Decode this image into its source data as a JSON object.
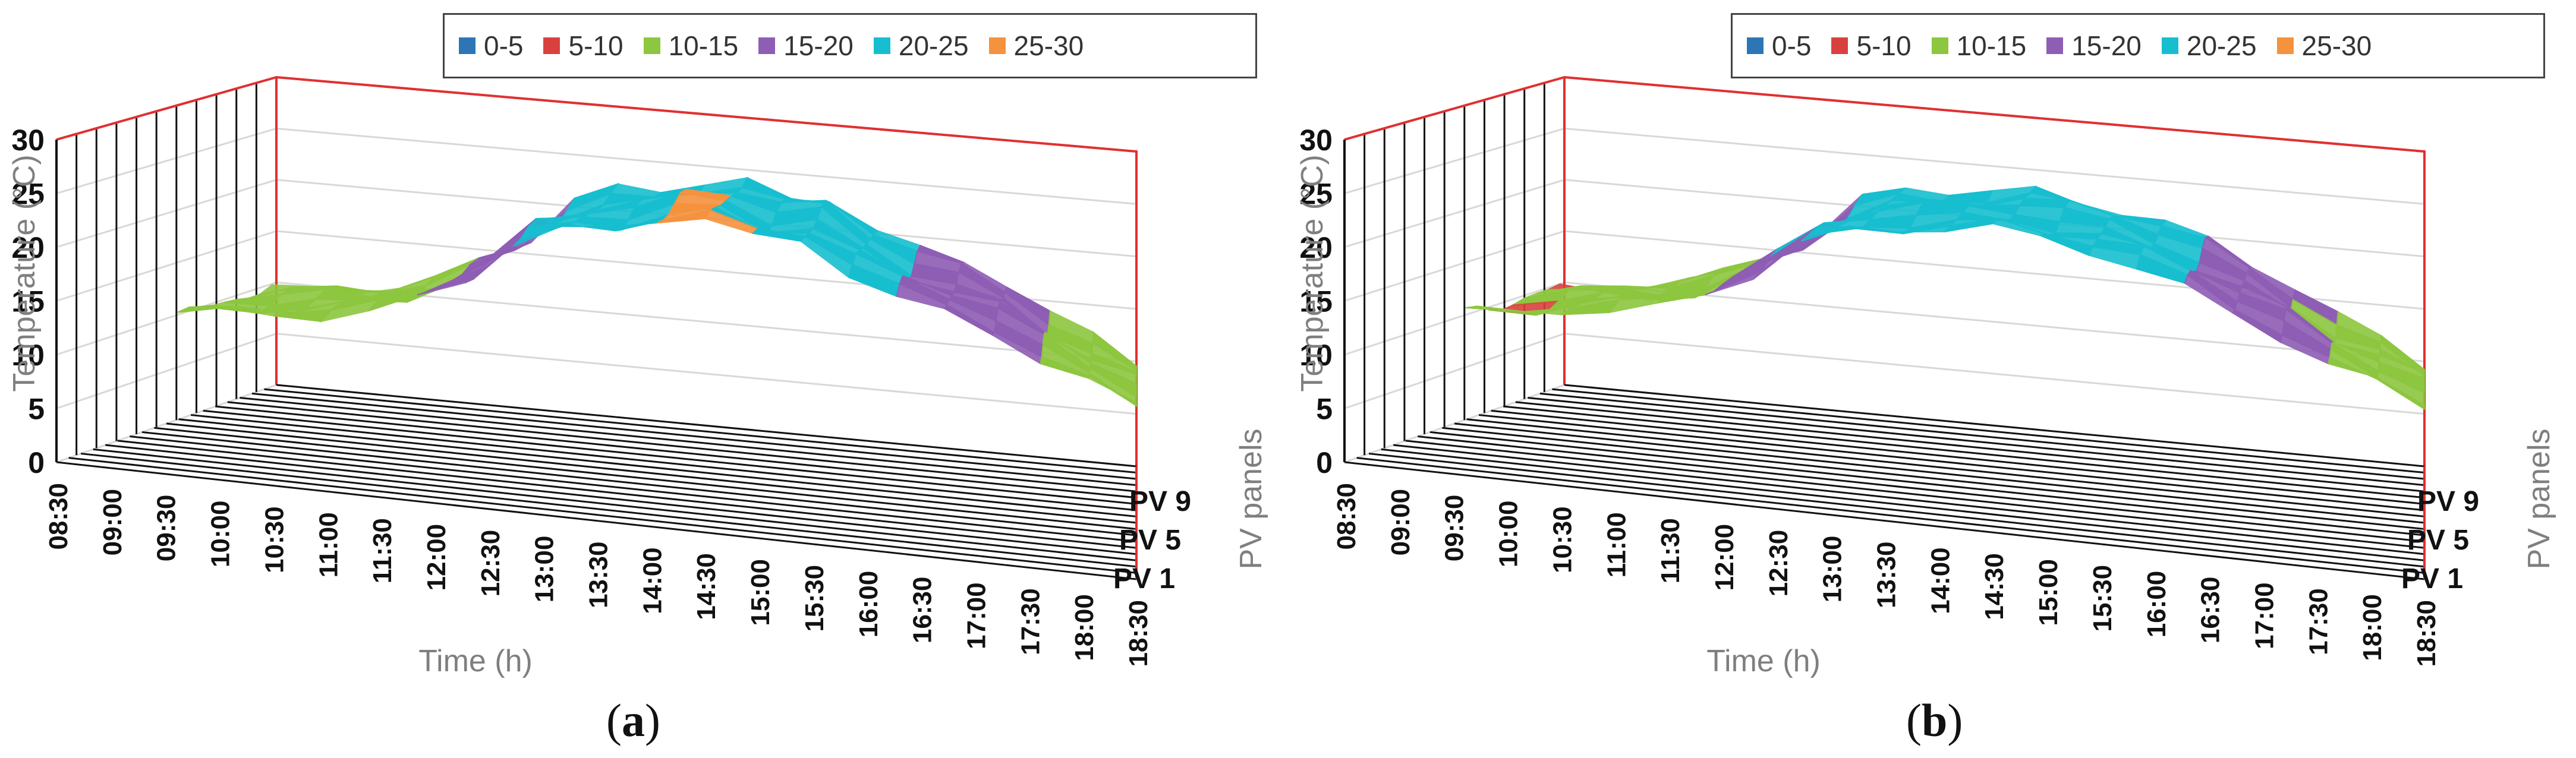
{
  "chart_data": [
    {
      "type": "surface",
      "panel_label": "a",
      "xlabel": "Time (h)",
      "ylabel": "Temperature (°C)",
      "zlabel": "PV panels",
      "ylim": [
        0,
        30
      ],
      "y_ticks": [
        "0",
        "5",
        "10",
        "15",
        "20",
        "25",
        "30"
      ],
      "x_ticks": [
        "08:30",
        "09:00",
        "09:30",
        "10:00",
        "10:30",
        "11:00",
        "11:30",
        "12:00",
        "12:30",
        "13:00",
        "13:30",
        "14:00",
        "14:30",
        "15:00",
        "15:30",
        "16:00",
        "16:30",
        "17:00",
        "17:30",
        "18:00",
        "18:30"
      ],
      "z_ticks": [
        "PV 1",
        "PV 5",
        "PV 9"
      ],
      "legend": [
        "0-5",
        "5-10",
        "10-15",
        "15-20",
        "20-25",
        "25-30"
      ],
      "legend_colors": [
        "#2e75b6",
        "#d9413f",
        "#8dc63f",
        "#8e5db4",
        "#17becf",
        "#f5923e"
      ],
      "series_profile_C": [
        10.5,
        11,
        11.5,
        12,
        13,
        15,
        17.5,
        21.5,
        23,
        23.5,
        25,
        25.5,
        24,
        24.5,
        22,
        20,
        19,
        17.5,
        15,
        13,
        11
      ]
    },
    {
      "type": "surface",
      "panel_label": "b",
      "xlabel": "Time (h)",
      "ylabel": "Temperature (°C)",
      "zlabel": "PV panels",
      "ylim": [
        0,
        30
      ],
      "y_ticks": [
        "0",
        "5",
        "10",
        "15",
        "20",
        "25",
        "30"
      ],
      "x_ticks": [
        "08:30",
        "09:00",
        "09:30",
        "10:00",
        "10:30",
        "11:00",
        "11:30",
        "12:00",
        "12:30",
        "13:00",
        "13:30",
        "14:00",
        "14:30",
        "15:00",
        "15:30",
        "16:00",
        "16:30",
        "17:00",
        "17:30",
        "18:00",
        "18:30"
      ],
      "z_ticks": [
        "PV 1",
        "PV 5",
        "PV 9"
      ],
      "legend": [
        "0-5",
        "5-10",
        "10-15",
        "15-20",
        "20-25",
        "25-30"
      ],
      "legend_colors": [
        "#2e75b6",
        "#d9413f",
        "#8dc63f",
        "#8e5db4",
        "#17becf",
        "#f5923e"
      ],
      "series_profile_C": [
        10.5,
        11,
        12,
        12.5,
        13.5,
        15.5,
        18,
        21.5,
        23,
        23.5,
        24,
        24.5,
        24,
        23.5,
        22.5,
        21,
        19,
        17,
        14.5,
        13,
        11
      ]
    }
  ]
}
